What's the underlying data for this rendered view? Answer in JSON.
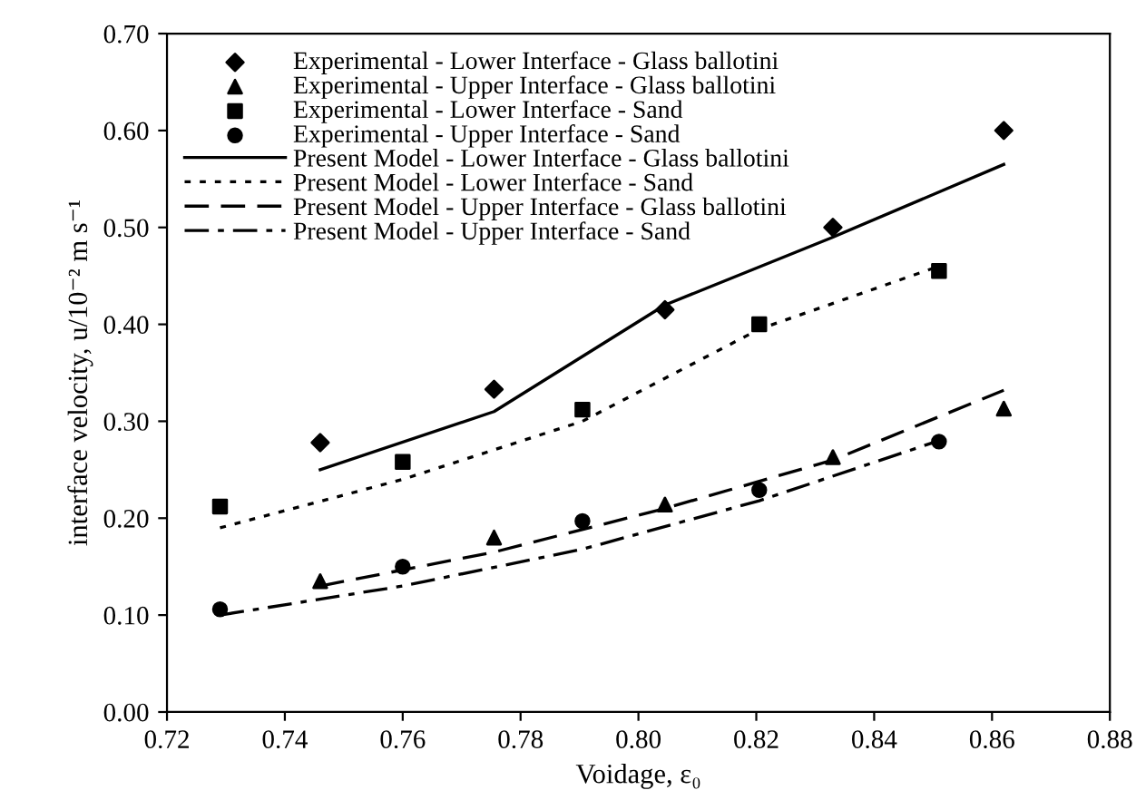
{
  "chart_data": {
    "type": "line",
    "xlabel": "Voidage, ε₀",
    "ylabel": "interface velocity, u/10⁻² m s⁻¹",
    "xlim": [
      0.72,
      0.88
    ],
    "ylim": [
      0,
      0.7
    ],
    "xticks": [
      {
        "value": 0.72,
        "label": "0.72"
      },
      {
        "value": 0.74,
        "label": "0.74"
      },
      {
        "value": 0.76,
        "label": "0.76"
      },
      {
        "value": 0.78,
        "label": "0.78"
      },
      {
        "value": 0.8,
        "label": "0.80"
      },
      {
        "value": 0.82,
        "label": "0.82"
      },
      {
        "value": 0.84,
        "label": "0.84"
      },
      {
        "value": 0.86,
        "label": "0.86"
      },
      {
        "value": 0.88,
        "label": "0.88"
      }
    ],
    "yticks": [
      {
        "value": 0,
        "label": "0.00"
      },
      {
        "value": 0.1,
        "label": "0.10"
      },
      {
        "value": 0.2,
        "label": "0.20"
      },
      {
        "value": 0.3,
        "label": "0.30"
      },
      {
        "value": 0.4,
        "label": "0.40"
      },
      {
        "value": 0.5,
        "label": "0.50"
      },
      {
        "value": 0.6,
        "label": "0.60"
      },
      {
        "value": 0.7,
        "label": "0.70"
      }
    ],
    "grid": false,
    "legend": "top left",
    "series": [
      {
        "name": "Experimental - Lower Interface - Glass ballotini",
        "type": "scatter",
        "marker": "diamond",
        "color": "#000000",
        "x": [
          0.746,
          0.7755,
          0.8045,
          0.833,
          0.862
        ],
        "values": [
          0.278,
          0.333,
          0.415,
          0.5,
          0.6
        ]
      },
      {
        "name": "Experimental - Upper Interface - Glass ballotini",
        "type": "scatter",
        "marker": "triangle",
        "color": "#000000",
        "x": [
          0.746,
          0.7755,
          0.8045,
          0.833,
          0.862
        ],
        "values": [
          0.135,
          0.18,
          0.214,
          0.263,
          0.313
        ]
      },
      {
        "name": "Experimental - Lower Interface - Sand",
        "type": "scatter",
        "marker": "square",
        "color": "#000000",
        "x": [
          0.729,
          0.76,
          0.7905,
          0.8205,
          0.851
        ],
        "values": [
          0.212,
          0.258,
          0.312,
          0.4,
          0.455
        ]
      },
      {
        "name": "Experimental - Upper Interface - Sand",
        "type": "scatter",
        "marker": "circle",
        "color": "#000000",
        "x": [
          0.729,
          0.76,
          0.7905,
          0.8205,
          0.851
        ],
        "values": [
          0.106,
          0.15,
          0.197,
          0.229,
          0.279
        ]
      },
      {
        "name": "Present Model - Lower Interface - Glass ballotini",
        "type": "line",
        "line_style": "solid",
        "color": "#000000",
        "x": [
          0.746,
          0.7755,
          0.8045,
          0.833,
          0.862
        ],
        "values": [
          0.25,
          0.31,
          0.42,
          0.49,
          0.565
        ]
      },
      {
        "name": "Present Model - Lower Interface - Sand",
        "type": "line",
        "line_style": "dotted",
        "color": "#000000",
        "x": [
          0.729,
          0.76,
          0.7905,
          0.8205,
          0.851
        ],
        "values": [
          0.19,
          0.24,
          0.3,
          0.395,
          0.46
        ]
      },
      {
        "name": "Present Model - Upper Interface - Glass ballotini",
        "type": "line",
        "line_style": "dashed",
        "color": "#000000",
        "x": [
          0.746,
          0.7755,
          0.8045,
          0.833,
          0.862
        ],
        "values": [
          0.13,
          0.165,
          0.21,
          0.26,
          0.332
        ]
      },
      {
        "name": "Present Model - Upper Interface - Sand",
        "type": "line",
        "line_style": "dashdot",
        "color": "#000000",
        "x": [
          0.729,
          0.76,
          0.7905,
          0.8205,
          0.851
        ],
        "values": [
          0.1,
          0.13,
          0.168,
          0.218,
          0.28
        ]
      }
    ]
  }
}
